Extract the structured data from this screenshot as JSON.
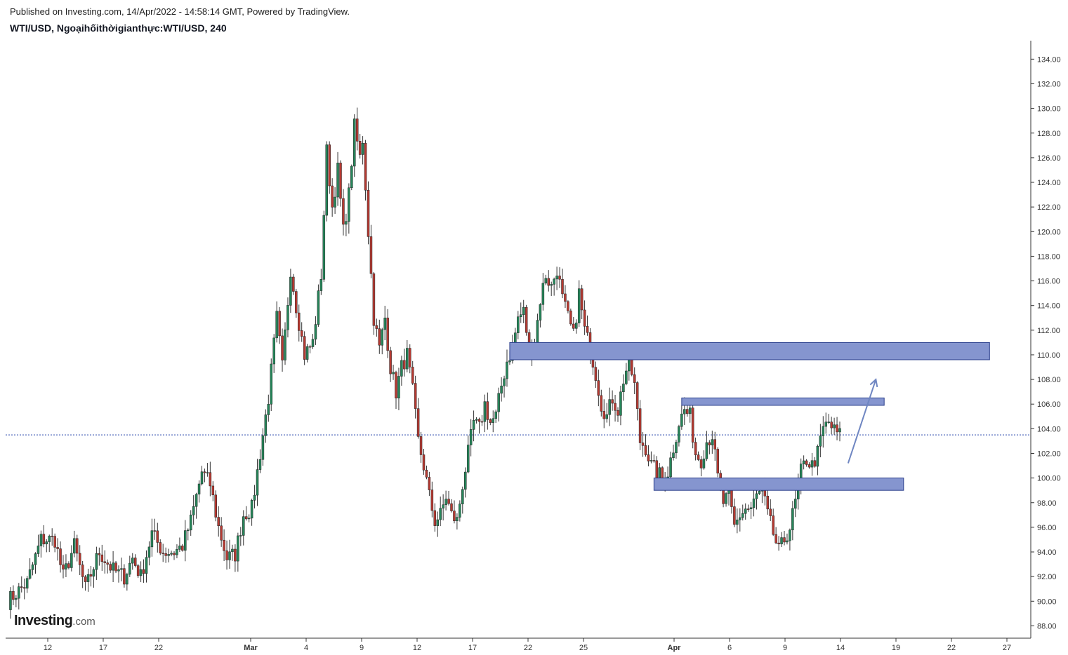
{
  "header": {
    "published": "Published on Investing.com, 14/Apr/2022 - 14:58:14 GMT, Powered by TradingView.",
    "symbol": "WTI/USD, Ngoạihốithờigianthực:WTI/USD, 240"
  },
  "logo": {
    "main": "Investing",
    "suffix": ".com"
  },
  "colors": {
    "up": "#26865a",
    "down": "#b73a32",
    "zone_fill": "#8595cf",
    "zone_stroke": "#2b3f8c",
    "arrow": "#6f86c2",
    "price_line": "#1f3fa8",
    "axis": "#333333"
  },
  "chart_data": {
    "type": "candlestick",
    "timeframe": "240",
    "ylim": [
      87,
      135.5
    ],
    "y_ticks": [
      "88.00",
      "90.00",
      "92.00",
      "94.00",
      "96.00",
      "98.00",
      "100.00",
      "102.00",
      "104.00",
      "106.00",
      "108.00",
      "110.00",
      "112.00",
      "114.00",
      "116.00",
      "118.00",
      "120.00",
      "122.00",
      "124.00",
      "126.00",
      "128.00",
      "130.00",
      "132.00",
      "134.00"
    ],
    "x_ticks": [
      "12",
      "17",
      "22",
      "Mar",
      "4",
      "9",
      "12",
      "17",
      "22",
      "25",
      "Apr",
      "6",
      "9",
      "14",
      "19",
      "22",
      "27"
    ],
    "current_price": 103.5,
    "anchors": [
      [
        0,
        90.0
      ],
      [
        7,
        91.5
      ],
      [
        12,
        95.0
      ],
      [
        17,
        95.0
      ],
      [
        20,
        92.0
      ],
      [
        24,
        94.5
      ],
      [
        28,
        91.0
      ],
      [
        33,
        94.0
      ],
      [
        38,
        92.5
      ],
      [
        42,
        92.0
      ],
      [
        45,
        93.5
      ],
      [
        48,
        92.0
      ],
      [
        52,
        95.5
      ],
      [
        56,
        94.0
      ],
      [
        60,
        94.0
      ],
      [
        63,
        94.5
      ],
      [
        66,
        96.5
      ],
      [
        70,
        100.5
      ],
      [
        73,
        99.5
      ],
      [
        76,
        96.0
      ],
      [
        79,
        93.5
      ],
      [
        82,
        93.8
      ],
      [
        85,
        97.0
      ],
      [
        88,
        97.5
      ],
      [
        91,
        102.0
      ],
      [
        94,
        106.5
      ],
      [
        97,
        113.0
      ],
      [
        99,
        109.0
      ],
      [
        102,
        117.0
      ],
      [
        104,
        114.0
      ],
      [
        107,
        110.0
      ],
      [
        110,
        111.0
      ],
      [
        113,
        116.5
      ],
      [
        115,
        126.5
      ],
      [
        117,
        122.0
      ],
      [
        119,
        125.0
      ],
      [
        121,
        120.0
      ],
      [
        123,
        123.0
      ],
      [
        125,
        128.5
      ],
      [
        127,
        126.0
      ],
      [
        128,
        127.5
      ],
      [
        130,
        120.0
      ],
      [
        132,
        113.0
      ],
      [
        134,
        110.5
      ],
      [
        136,
        113.0
      ],
      [
        138,
        109.0
      ],
      [
        140,
        107.0
      ],
      [
        142,
        109.0
      ],
      [
        144,
        110.0
      ],
      [
        146,
        107.0
      ],
      [
        148,
        103.0
      ],
      [
        150,
        101.0
      ],
      [
        152,
        98.5
      ],
      [
        154,
        96.5
      ],
      [
        156,
        97.0
      ],
      [
        158,
        98.5
      ],
      [
        160,
        97.0
      ],
      [
        162,
        96.5
      ],
      [
        164,
        99.5
      ],
      [
        166,
        102.0
      ],
      [
        168,
        104.5
      ],
      [
        170,
        104.0
      ],
      [
        172,
        106.0
      ],
      [
        174,
        104.5
      ],
      [
        176,
        105.0
      ],
      [
        178,
        107.5
      ],
      [
        180,
        109.5
      ],
      [
        182,
        110.5
      ],
      [
        184,
        113.0
      ],
      [
        186,
        113.5
      ],
      [
        188,
        110.5
      ],
      [
        190,
        111.0
      ],
      [
        192,
        114.5
      ],
      [
        194,
        116.5
      ],
      [
        196,
        115.5
      ],
      [
        198,
        117.0
      ],
      [
        200,
        114.5
      ],
      [
        202,
        113.0
      ],
      [
        204,
        111.5
      ],
      [
        206,
        115.0
      ],
      [
        208,
        112.0
      ],
      [
        210,
        110.5
      ],
      [
        212,
        108.5
      ],
      [
        214,
        106.0
      ],
      [
        216,
        105.0
      ],
      [
        218,
        106.5
      ],
      [
        220,
        105.5
      ],
      [
        222,
        108.0
      ],
      [
        224,
        109.5
      ],
      [
        226,
        107.5
      ],
      [
        228,
        103.0
      ],
      [
        230,
        102.5
      ],
      [
        232,
        101.0
      ],
      [
        234,
        100.5
      ],
      [
        236,
        100.0
      ],
      [
        238,
        100.5
      ],
      [
        240,
        102.5
      ],
      [
        242,
        104.5
      ],
      [
        244,
        105.5
      ],
      [
        246,
        105.0
      ],
      [
        248,
        102.0
      ],
      [
        250,
        101.5
      ],
      [
        252,
        103.0
      ],
      [
        254,
        103.5
      ],
      [
        256,
        100.0
      ],
      [
        258,
        98.0
      ],
      [
        260,
        98.5
      ],
      [
        262,
        96.0
      ],
      [
        264,
        97.0
      ],
      [
        266,
        97.5
      ],
      [
        268,
        97.5
      ],
      [
        270,
        98.5
      ],
      [
        272,
        99.0
      ],
      [
        274,
        97.0
      ],
      [
        276,
        95.5
      ],
      [
        278,
        94.0
      ],
      [
        280,
        95.0
      ],
      [
        282,
        96.0
      ],
      [
        284,
        98.0
      ],
      [
        286,
        100.5
      ],
      [
        288,
        101.5
      ],
      [
        290,
        101.0
      ],
      [
        292,
        102.0
      ],
      [
        294,
        104.0
      ],
      [
        296,
        104.5
      ],
      [
        298,
        103.8
      ],
      [
        300,
        103.5
      ]
    ],
    "zones": [
      {
        "x0": 181,
        "x1": 354,
        "y0": 109.6,
        "y1": 111.0
      },
      {
        "x0": 243,
        "x1": 316,
        "y0": 105.9,
        "y1": 106.5
      },
      {
        "x0": 233,
        "x1": 323,
        "y0": 99.0,
        "y1": 100.0
      }
    ],
    "arrow": {
      "x0": 303,
      "y0": 101.2,
      "x1": 313,
      "y1": 108.0
    }
  }
}
